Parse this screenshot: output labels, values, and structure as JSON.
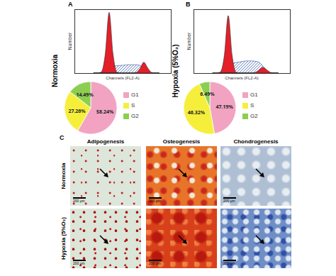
{
  "figure": {
    "panels": [
      "A",
      "B",
      "C"
    ],
    "rows": [
      "Normoxia",
      "Hypoxia (5%O₂)"
    ],
    "columns": [
      "Adipogenesis",
      "Osteogenesis",
      "Chondrogenesis"
    ],
    "scale_bar": "200 μm"
  },
  "chart_data": [
    {
      "type": "area",
      "xlabel": "Channels (FL2-A)",
      "ylabel": "Number",
      "x": [
        40,
        48,
        56,
        64,
        72,
        80,
        88,
        96,
        104,
        112,
        120,
        128,
        136,
        144,
        152,
        160,
        168,
        176
      ],
      "series": [
        {
          "name": "S",
          "color": "#2a4ea0",
          "line_style": "hatched",
          "values": [
            0,
            0,
            0,
            40,
            90,
            110,
            115,
            120,
            125,
            130,
            130,
            130,
            120,
            80,
            30,
            0,
            0,
            0
          ]
        },
        {
          "name": "G1",
          "color": "#e3202a",
          "values": [
            0,
            0,
            20,
            300,
            950,
            300,
            15,
            0,
            0,
            0,
            0,
            0,
            0,
            0,
            0,
            0,
            0,
            0
          ]
        },
        {
          "name": "G2",
          "color": "#e3202a",
          "values": [
            0,
            0,
            0,
            0,
            0,
            0,
            0,
            0,
            0,
            0,
            0,
            10,
            70,
            170,
            80,
            10,
            0,
            0
          ]
        }
      ],
      "xlim": [
        0,
        200
      ],
      "ylim": [
        0,
        1000
      ],
      "tick_labels": false
    },
    {
      "type": "area",
      "xlabel": "Channels (FL2-A)",
      "ylabel": "Number",
      "x": [
        40,
        48,
        56,
        64,
        72,
        80,
        88,
        96,
        104,
        112,
        120,
        128,
        136,
        144,
        152,
        160,
        168,
        176
      ],
      "series": [
        {
          "name": "S",
          "color": "#2a4ea0",
          "line_style": "hatched",
          "values": [
            0,
            0,
            0,
            50,
            120,
            150,
            165,
            175,
            185,
            190,
            190,
            185,
            170,
            110,
            40,
            0,
            0,
            0
          ]
        },
        {
          "name": "G1",
          "color": "#e3202a",
          "values": [
            0,
            0,
            20,
            280,
            900,
            280,
            15,
            0,
            0,
            0,
            0,
            0,
            0,
            0,
            0,
            0,
            0,
            0
          ]
        },
        {
          "name": "G2",
          "color": "#e3202a",
          "values": [
            0,
            0,
            0,
            0,
            0,
            0,
            0,
            0,
            0,
            0,
            0,
            10,
            50,
            90,
            50,
            10,
            0,
            0
          ]
        }
      ],
      "xlim": [
        0,
        200
      ],
      "ylim": [
        0,
        1000
      ],
      "tick_labels": false
    },
    {
      "type": "pie",
      "categories": [
        "G1",
        "S",
        "G2"
      ],
      "values": [
        58.24,
        27.26,
        14.49
      ],
      "value_labels": [
        "58.24%",
        "27.26%",
        "14.49%"
      ],
      "colors": [
        "#f2a3c2",
        "#f5ef3c",
        "#8ccf50"
      ],
      "data_labels": true,
      "legend": "right"
    },
    {
      "type": "pie",
      "categories": [
        "G1",
        "S",
        "G2"
      ],
      "values": [
        47.19,
        46.32,
        6.49
      ],
      "value_labels": [
        "47.19%",
        "46.32%",
        "6.49%"
      ],
      "colors": [
        "#f2a3c2",
        "#f5ef3c",
        "#8ccf50"
      ],
      "data_labels": true,
      "legend": "right"
    }
  ]
}
